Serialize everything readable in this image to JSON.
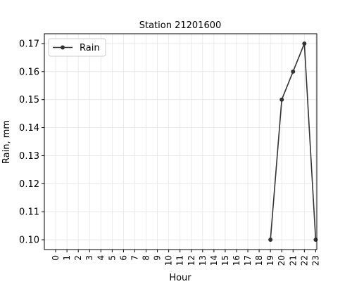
{
  "chart_data": {
    "type": "line",
    "title": "Station 21201600",
    "xlabel": "Hour",
    "ylabel": "Rain, mm",
    "x_ticks": [
      0,
      1,
      2,
      3,
      4,
      5,
      6,
      7,
      8,
      9,
      10,
      11,
      12,
      13,
      14,
      15,
      16,
      17,
      18,
      19,
      20,
      21,
      22,
      23
    ],
    "y_ticks": [
      "0.10",
      "0.11",
      "0.12",
      "0.13",
      "0.14",
      "0.15",
      "0.16",
      "0.17"
    ],
    "xlim": [
      -1,
      23.1
    ],
    "ylim": [
      0.0965,
      0.1735
    ],
    "grid": true,
    "legend_position": "top-left",
    "series": [
      {
        "name": "Rain",
        "color": "#333333",
        "marker": "circle",
        "x": [
          19,
          20,
          21,
          22,
          23
        ],
        "y": [
          0.1,
          0.15,
          0.16,
          0.17,
          0.1
        ]
      }
    ]
  }
}
